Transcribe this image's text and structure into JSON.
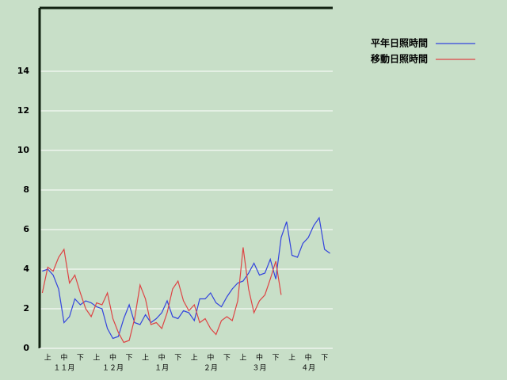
{
  "chart_data": {
    "type": "line",
    "categories": [
      null,
      "上",
      null,
      null,
      "中",
      null,
      null,
      "下",
      null,
      null,
      "上",
      null,
      null,
      "中",
      null,
      null,
      "下",
      null,
      null,
      "上",
      null,
      null,
      "中",
      null,
      null,
      "下",
      null,
      null,
      "上",
      null,
      null,
      "中",
      null,
      null,
      "下",
      null,
      null,
      "上",
      null,
      null,
      "中",
      null,
      null,
      "下",
      null,
      null,
      "上",
      null,
      null,
      "中",
      null,
      null,
      "下",
      null
    ],
    "months": [
      "１１月",
      "１２月",
      "１月",
      "２月",
      "３月",
      "４月"
    ],
    "series": [
      {
        "name": "平年日照時間",
        "color": "#3344dd",
        "values": [
          3.9,
          4.0,
          3.7,
          3.0,
          1.3,
          1.6,
          2.5,
          2.2,
          2.4,
          2.3,
          2.1,
          2.0,
          1.0,
          0.5,
          0.6,
          1.5,
          2.2,
          1.3,
          1.2,
          1.7,
          1.3,
          1.5,
          1.8,
          2.4,
          1.6,
          1.5,
          1.9,
          1.8,
          1.4,
          2.5,
          2.5,
          2.8,
          2.3,
          2.1,
          2.6,
          3.0,
          3.3,
          3.4,
          3.8,
          4.3,
          3.7,
          3.8,
          4.5,
          3.5,
          5.6,
          6.4,
          4.7,
          4.6,
          5.3,
          5.6,
          6.2,
          6.6,
          5.0,
          4.8
        ]
      },
      {
        "name": "移動日照時間",
        "color": "#dd4444",
        "values": [
          2.8,
          4.1,
          3.9,
          4.6,
          5.0,
          3.3,
          3.7,
          2.8,
          2.0,
          1.6,
          2.3,
          2.2,
          2.8,
          1.5,
          0.8,
          0.3,
          0.4,
          1.5,
          3.2,
          2.5,
          1.2,
          1.3,
          1.0,
          1.8,
          3.0,
          3.4,
          2.4,
          1.9,
          2.2,
          1.3,
          1.5,
          1.0,
          0.7,
          1.4,
          1.6,
          1.4,
          2.4,
          5.1,
          3.0,
          1.8,
          2.4,
          2.7,
          3.5,
          4.4,
          2.7,
          null,
          null,
          null,
          null,
          null,
          null,
          null,
          null,
          null
        ]
      }
    ],
    "ylim": [
      0,
      17.2
    ],
    "yticks": [
      0,
      2,
      4,
      6,
      8,
      10,
      12,
      14
    ],
    "grid": true,
    "legend": "top-right"
  }
}
